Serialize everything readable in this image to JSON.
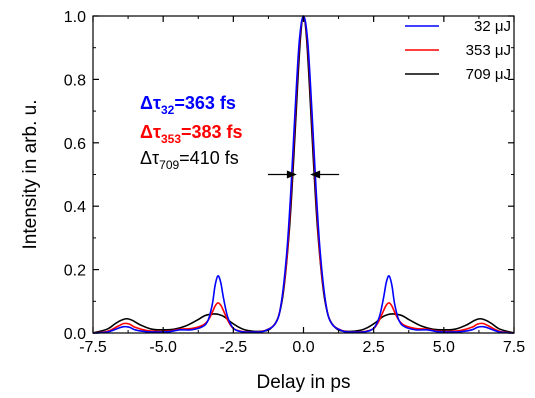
{
  "chart_data": {
    "type": "line",
    "xlabel": "Delay in ps",
    "ylabel": "Intensity in arb. u.",
    "xlim": [
      -7.5,
      7.5
    ],
    "ylim": [
      0.0,
      1.0
    ],
    "x_ticks": [
      -7.5,
      -5.0,
      -2.5,
      0.0,
      2.5,
      5.0,
      7.5
    ],
    "x_tick_labels": [
      "-7.5",
      "-5.0",
      "-2.5",
      "0.0",
      "2.5",
      "5.0",
      "7.5"
    ],
    "y_ticks": [
      0.0,
      0.2,
      0.4,
      0.6,
      0.8,
      1.0
    ],
    "y_tick_labels": [
      "0.0",
      "0.2",
      "0.4",
      "0.6",
      "0.8",
      "1.0"
    ],
    "grid": false,
    "legend_position": "top-right",
    "series": [
      {
        "name": "32 μJ",
        "color": "#0000ff",
        "x": [
          -7.5,
          -7.0,
          -6.6,
          -6.4,
          -6.2,
          -6.0,
          -5.6,
          -5.2,
          -4.8,
          -4.4,
          -4.0,
          -3.6,
          -3.4,
          -3.25,
          -3.15,
          -3.05,
          -2.95,
          -2.85,
          -2.7,
          -2.5,
          -2.2,
          -1.8,
          -1.4,
          -1.0,
          -0.8,
          -0.6,
          -0.45,
          -0.3,
          -0.15,
          0.0,
          0.15,
          0.3,
          0.45,
          0.6,
          0.8,
          1.0,
          1.4,
          1.8,
          2.2,
          2.5,
          2.7,
          2.85,
          2.95,
          3.05,
          3.15,
          3.25,
          3.4,
          3.6,
          4.0,
          4.4,
          4.8,
          5.2,
          5.6,
          6.0,
          6.2,
          6.4,
          6.6,
          7.0,
          7.5
        ],
        "y": [
          0.0,
          0.003,
          0.015,
          0.02,
          0.018,
          0.01,
          0.004,
          0.003,
          0.004,
          0.01,
          0.01,
          0.02,
          0.04,
          0.09,
          0.15,
          0.18,
          0.16,
          0.11,
          0.05,
          0.015,
          0.004,
          0.003,
          0.006,
          0.03,
          0.09,
          0.25,
          0.45,
          0.7,
          0.92,
          1.0,
          0.92,
          0.7,
          0.45,
          0.25,
          0.09,
          0.03,
          0.006,
          0.003,
          0.004,
          0.015,
          0.05,
          0.11,
          0.16,
          0.18,
          0.15,
          0.09,
          0.04,
          0.02,
          0.01,
          0.01,
          0.004,
          0.003,
          0.004,
          0.01,
          0.018,
          0.02,
          0.015,
          0.003,
          0.0
        ]
      },
      {
        "name": "353 μJ",
        "color": "#ff0000",
        "x": [
          -7.5,
          -7.0,
          -6.6,
          -6.4,
          -6.2,
          -6.0,
          -5.6,
          -5.2,
          -4.8,
          -4.4,
          -4.0,
          -3.6,
          -3.4,
          -3.25,
          -3.15,
          -3.05,
          -2.95,
          -2.85,
          -2.7,
          -2.5,
          -2.2,
          -1.8,
          -1.4,
          -1.0,
          -0.8,
          -0.6,
          -0.45,
          -0.3,
          -0.15,
          0.0,
          0.15,
          0.3,
          0.45,
          0.6,
          0.8,
          1.0,
          1.4,
          1.8,
          2.2,
          2.5,
          2.7,
          2.85,
          2.95,
          3.05,
          3.15,
          3.25,
          3.4,
          3.6,
          4.0,
          4.4,
          4.8,
          5.2,
          5.6,
          6.0,
          6.2,
          6.4,
          6.6,
          7.0,
          7.5
        ],
        "y": [
          0.0,
          0.005,
          0.022,
          0.03,
          0.028,
          0.018,
          0.008,
          0.005,
          0.006,
          0.012,
          0.014,
          0.024,
          0.04,
          0.065,
          0.085,
          0.095,
          0.088,
          0.07,
          0.04,
          0.014,
          0.005,
          0.003,
          0.007,
          0.03,
          0.09,
          0.23,
          0.43,
          0.68,
          0.91,
          1.0,
          0.91,
          0.68,
          0.43,
          0.23,
          0.09,
          0.03,
          0.007,
          0.003,
          0.005,
          0.014,
          0.04,
          0.07,
          0.088,
          0.095,
          0.085,
          0.065,
          0.04,
          0.024,
          0.014,
          0.012,
          0.006,
          0.005,
          0.008,
          0.018,
          0.028,
          0.03,
          0.022,
          0.005,
          0.0
        ]
      },
      {
        "name": "709 μJ",
        "color": "#000000",
        "x": [
          -7.5,
          -7.0,
          -6.7,
          -6.5,
          -6.3,
          -6.1,
          -5.8,
          -5.4,
          -5.0,
          -4.6,
          -4.2,
          -3.8,
          -3.5,
          -3.2,
          -3.0,
          -2.8,
          -2.6,
          -2.3,
          -2.0,
          -1.6,
          -1.2,
          -0.9,
          -0.7,
          -0.5,
          -0.35,
          -0.2,
          -0.1,
          0.0,
          0.1,
          0.2,
          0.35,
          0.5,
          0.7,
          0.9,
          1.2,
          1.6,
          2.0,
          2.3,
          2.6,
          2.8,
          3.0,
          3.2,
          3.5,
          3.8,
          4.2,
          4.6,
          5.0,
          5.4,
          5.8,
          6.1,
          6.3,
          6.5,
          6.7,
          7.0,
          7.5
        ],
        "y": [
          0.0,
          0.012,
          0.03,
          0.04,
          0.045,
          0.04,
          0.025,
          0.012,
          0.01,
          0.012,
          0.022,
          0.04,
          0.055,
          0.06,
          0.058,
          0.05,
          0.035,
          0.018,
          0.008,
          0.005,
          0.012,
          0.05,
          0.14,
          0.33,
          0.55,
          0.8,
          0.94,
          1.0,
          0.94,
          0.8,
          0.55,
          0.33,
          0.14,
          0.05,
          0.012,
          0.005,
          0.008,
          0.018,
          0.035,
          0.05,
          0.058,
          0.06,
          0.055,
          0.04,
          0.022,
          0.012,
          0.01,
          0.012,
          0.025,
          0.04,
          0.045,
          0.04,
          0.03,
          0.012,
          0.0
        ]
      }
    ],
    "annotations": [
      {
        "symbol": "Δτ",
        "subscript": "32",
        "value": "=363 fs",
        "color": "#0000ff"
      },
      {
        "symbol": "Δτ",
        "subscript": "353",
        "value": "=383 fs",
        "color": "#ff0000"
      },
      {
        "symbol": "Δτ",
        "subscript": "709",
        "value": "=410 fs",
        "color": "#000000"
      }
    ],
    "fwhm_arrows": {
      "x_left": -0.2,
      "x_right": 0.2,
      "y": 0.5
    }
  }
}
